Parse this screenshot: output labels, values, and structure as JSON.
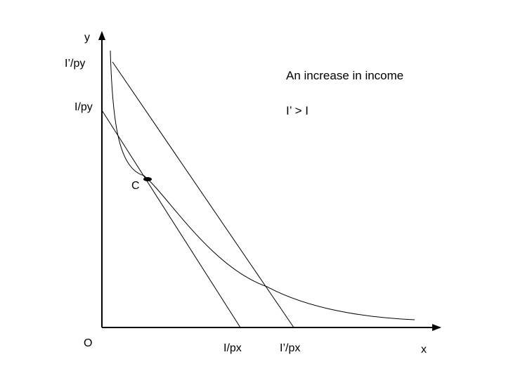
{
  "axes": {
    "y_label": "y",
    "x_label": "x",
    "origin_label": "O"
  },
  "intercepts": {
    "y_new": "I’/py",
    "y_old": "I/py",
    "x_old": "I/px",
    "x_new": "I’/px"
  },
  "point_label": "C",
  "annotation": {
    "title": "An increase in income",
    "condition": "I’ > I"
  },
  "colors": {
    "line": "#000000",
    "background": "#ffffff"
  }
}
